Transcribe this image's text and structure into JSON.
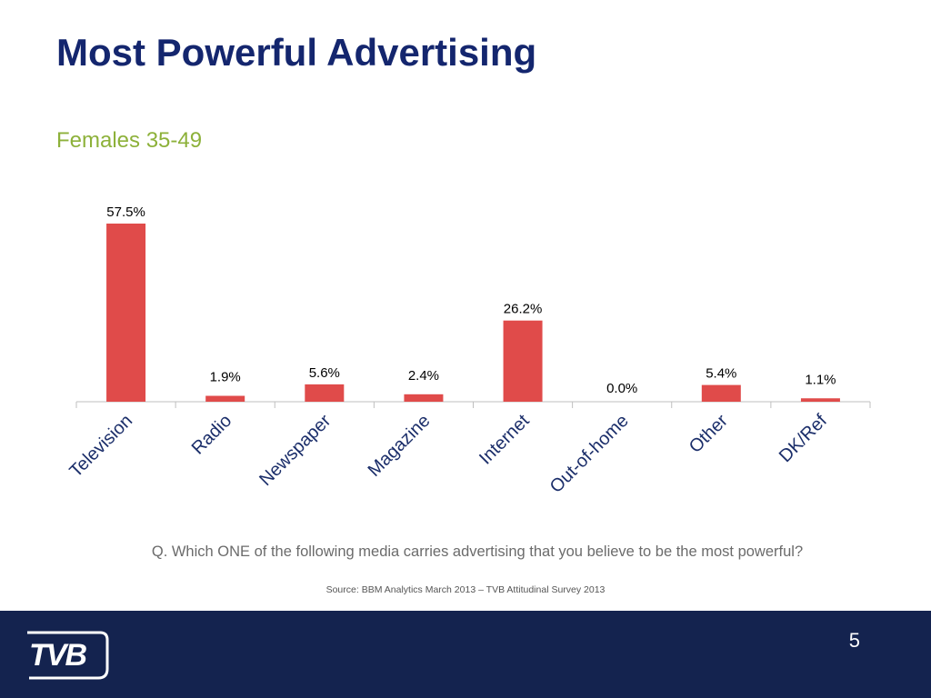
{
  "slide": {
    "title": "Most Powerful Advertising",
    "subtitle": "Females 35-49",
    "question": "Q. Which ONE of the following media carries advertising that you believe to be the most powerful?",
    "source": "Source: BBM Analytics March 2013 – TVB Attitudinal Survey 2013",
    "page_number": "5"
  },
  "logo": {
    "text": "TVB",
    "icon": "tvb-logo"
  },
  "colors": {
    "title": "#14266e",
    "subtitle": "#8db13a",
    "bar": "#e04b4a",
    "footer": "#14234f",
    "category_label": "#1b2e6a"
  },
  "chart_data": {
    "type": "bar",
    "title": "",
    "xlabel": "",
    "ylabel": "",
    "categories": [
      "Television",
      "Radio",
      "Newspaper",
      "Magazine",
      "Internet",
      "Out-of-home",
      "Other",
      "DK/Ref"
    ],
    "values": [
      57.5,
      1.9,
      5.6,
      2.4,
      26.2,
      0.0,
      5.4,
      1.1
    ],
    "value_labels": [
      "57.5%",
      "1.9%",
      "5.6%",
      "2.4%",
      "26.2%",
      "0.0%",
      "5.4%",
      "1.1%"
    ],
    "ylim": [
      0,
      60
    ],
    "grid": false,
    "legend": "none"
  }
}
